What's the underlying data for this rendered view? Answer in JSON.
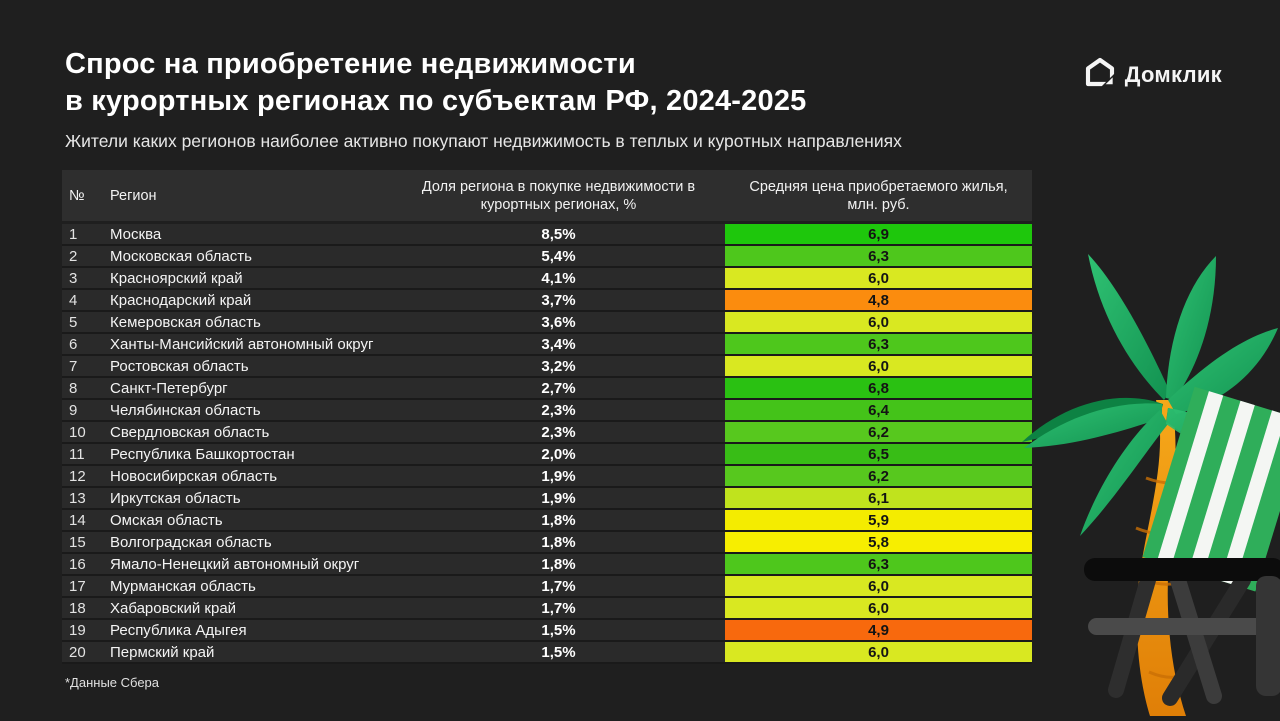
{
  "page": {
    "title_line1": "Спрос на приобретение недвижимости",
    "title_line2": "в курортных регионах по субъектам РФ, 2024-2025",
    "subtitle": "Жители каких регионов наиболее активно покупают недвижимость в теплых и куротных направлениях",
    "footnote": "*Данные Сбера",
    "background": "#1f1f1f"
  },
  "logo": {
    "brand": "Домклик"
  },
  "chart_data": {
    "type": "table",
    "title": "Спрос на приобретение недвижимости в курортных регионах по субъектам РФ, 2024-2025",
    "subtitle": "Жители каких регионов наиболее активно покупают недвижимость в теплых и куротных направлениях",
    "source": "*Данные Сбера",
    "columns": [
      "№",
      "Регион",
      "Доля региона в покупке недвижимости в курортных регионах, %",
      "Средняя цена приобретаемого жилья, млн. руб."
    ],
    "color_scale": {
      "high_price": "green",
      "mid_price": "yellow",
      "low_price": "orange"
    },
    "rows": [
      {
        "num": "1",
        "region": "Москва",
        "share": "8,5%",
        "price": "6,9",
        "color": "#1ec70c"
      },
      {
        "num": "2",
        "region": "Московская область",
        "share": "5,4%",
        "price": "6,3",
        "color": "#4ec71c"
      },
      {
        "num": "3",
        "region": "Красноярский край",
        "share": "4,1%",
        "price": "6,0",
        "color": "#d9e821"
      },
      {
        "num": "4",
        "region": "Краснодарский край",
        "share": "3,7%",
        "price": "4,8",
        "color": "#fb8c0e"
      },
      {
        "num": "5",
        "region": "Кемеровская область",
        "share": "3,6%",
        "price": "6,0",
        "color": "#d9e821"
      },
      {
        "num": "6",
        "region": "Ханты-Мансийский автономный округ",
        "share": "3,4%",
        "price": "6,3",
        "color": "#4ec71c"
      },
      {
        "num": "7",
        "region": "Ростовская область",
        "share": "3,2%",
        "price": "6,0",
        "color": "#d9e821"
      },
      {
        "num": "8",
        "region": "Санкт-Петербург",
        "share": "2,7%",
        "price": "6,8",
        "color": "#2ac112"
      },
      {
        "num": "9",
        "region": "Челябинская область",
        "share": "2,3%",
        "price": "6,4",
        "color": "#44c319"
      },
      {
        "num": "10",
        "region": "Свердловская область",
        "share": "2,3%",
        "price": "6,2",
        "color": "#57c81e"
      },
      {
        "num": "11",
        "region": "Республика Башкортостан",
        "share": "2,0%",
        "price": "6,5",
        "color": "#38bd16"
      },
      {
        "num": "12",
        "region": "Новосибирская область",
        "share": "1,9%",
        "price": "6,2",
        "color": "#57c81e"
      },
      {
        "num": "13",
        "region": "Иркутская область",
        "share": "1,9%",
        "price": "6,1",
        "color": "#c0e31d"
      },
      {
        "num": "14",
        "region": "Омская область",
        "share": "1,8%",
        "price": "5,9",
        "color": "#f4ec00"
      },
      {
        "num": "15",
        "region": "Волгоградская область",
        "share": "1,8%",
        "price": "5,8",
        "color": "#f7ee00"
      },
      {
        "num": "16",
        "region": "Ямало-Ненецкий автономный округ",
        "share": "1,8%",
        "price": "6,3",
        "color": "#4ec71c"
      },
      {
        "num": "17",
        "region": "Мурманская область",
        "share": "1,7%",
        "price": "6,0",
        "color": "#d9e821"
      },
      {
        "num": "18",
        "region": "Хабаровский край",
        "share": "1,7%",
        "price": "6,0",
        "color": "#d9e821"
      },
      {
        "num": "19",
        "region": "Республика Адыгея",
        "share": "1,5%",
        "price": "4,9",
        "color": "#f8690d"
      },
      {
        "num": "20",
        "region": "Пермский край",
        "share": "1,5%",
        "price": "6,0",
        "color": "#d9e821"
      }
    ]
  }
}
